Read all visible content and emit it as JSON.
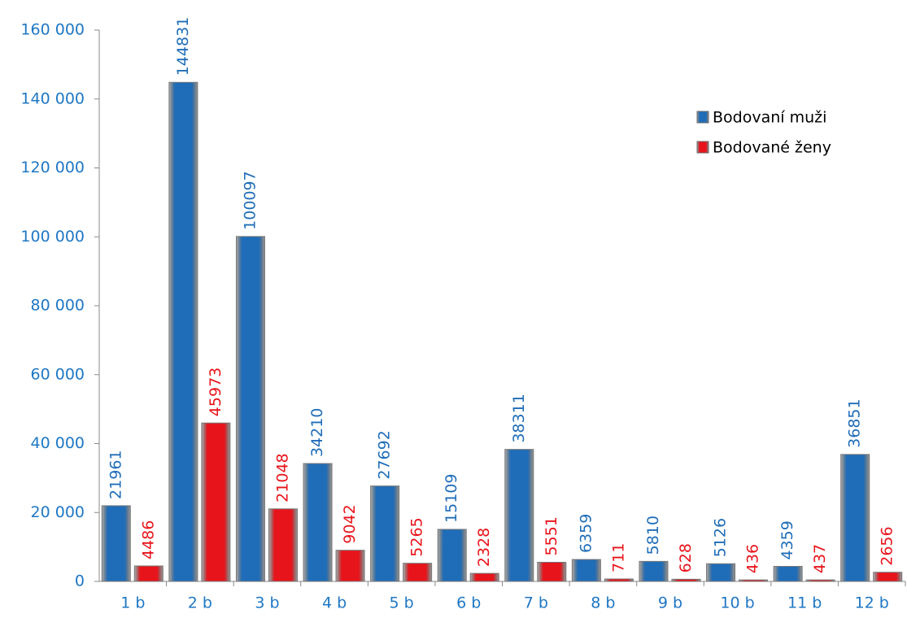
{
  "chart_data": {
    "type": "bar",
    "categories": [
      "1 b",
      "2 b",
      "3 b",
      "4 b",
      "5 b",
      "6 b",
      "7 b",
      "8 b",
      "9 b",
      "10 b",
      "11 b",
      "12 b"
    ],
    "series": [
      {
        "name": "Bodovaní muži",
        "color": "#1f6db8",
        "values": [
          21961,
          144831,
          100097,
          34210,
          27692,
          15109,
          38311,
          6359,
          5810,
          5126,
          4359,
          36851
        ]
      },
      {
        "name": "Bodované ženy",
        "color": "#e8141b",
        "values": [
          4486,
          45973,
          21048,
          9042,
          5265,
          2328,
          5551,
          711,
          628,
          436,
          437,
          2656
        ]
      }
    ],
    "ylim": [
      0,
      160000
    ],
    "yticks": [
      0,
      {
        "value": 20000,
        "label": "20 000"
      },
      {
        "value": 40000,
        "label": "40 000"
      },
      {
        "value": 60000,
        "label": "60 000"
      },
      {
        "value": 80000,
        "label": "80 000"
      },
      {
        "value": 100000,
        "label": "100 000"
      },
      {
        "value": 120000,
        "label": "120 000"
      },
      {
        "value": 140000,
        "label": "140 000"
      },
      {
        "value": 160000,
        "label": "160 000"
      }
    ],
    "grid": false,
    "legend": "upper right"
  }
}
